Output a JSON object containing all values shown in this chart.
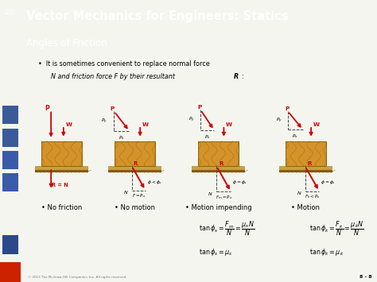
{
  "title": "Vector Mechanics for Engineers: Statics",
  "subtitle": "Angles of Friction",
  "title_bg": "#3a4f8a",
  "subtitle_bg": "#5a6e3a",
  "title_color": "#ffffff",
  "subtitle_color": "#ffffff",
  "body_bg": "#e8e8e8",
  "left_bar_color": "#1a2a5a",
  "bullet_line1": "It is sometimes convenient to replace normal force",
  "bullet_line2": "N and friction force F by their resultant ",
  "labels": [
    "No friction",
    "No motion",
    "Motion impending",
    "Motion"
  ],
  "copyright": "© 2013 The McGraw-Hill Companies, Inc. All rights reserved.",
  "page_num": "8 - 8",
  "wood_color": "#d4922a",
  "wood_dark": "#b87010",
  "ground_top": "#c8a040",
  "ground_bot": "#8b5a10",
  "arrow_color": "#cc0000",
  "dashed_color": "#444444",
  "white_bg": "#f5f5f0"
}
